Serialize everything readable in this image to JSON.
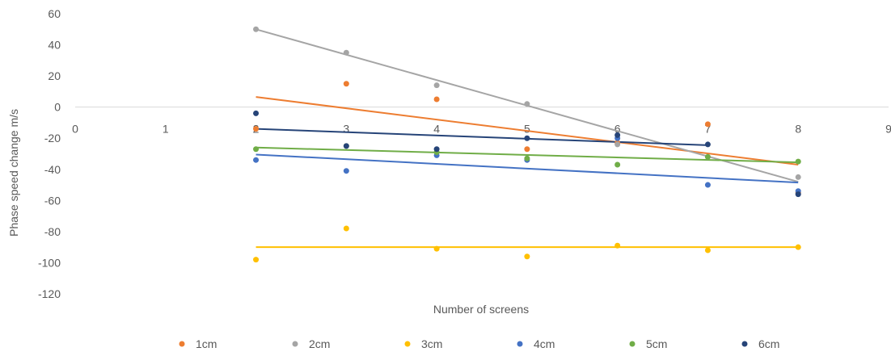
{
  "chart_data": {
    "type": "scatter",
    "title": "",
    "xlabel": "Number of screens",
    "ylabel": "Phase speed change m/s",
    "xlim": [
      0,
      9
    ],
    "ylim": [
      -120,
      60
    ],
    "x_ticks": [
      "0",
      "1",
      "2",
      "3",
      "4",
      "5",
      "6",
      "7",
      "8",
      "9"
    ],
    "y_ticks": [
      "60",
      "40",
      "20",
      "0",
      "-20",
      "-40",
      "-60",
      "-80",
      "-100",
      "-120"
    ],
    "grid": "horizontal zero line only",
    "legend_position": "bottom",
    "trendlines": "linear",
    "series": [
      {
        "name": "1cm",
        "color": "#ED7D31",
        "x": [
          2,
          3,
          4,
          5,
          6,
          7,
          8
        ],
        "y": [
          -14,
          15,
          5,
          -27,
          -23,
          -11,
          -55
        ],
        "trend": {
          "x": [
            2,
            8
          ],
          "y": [
            6.5,
            -37
          ]
        }
      },
      {
        "name": "2cm",
        "color": "#A5A5A5",
        "x": [
          2,
          3,
          4,
          5,
          6,
          7,
          8
        ],
        "y": [
          50,
          35,
          14,
          2,
          -24,
          -32,
          -45
        ],
        "trend": {
          "x": [
            2,
            8
          ],
          "y": [
            50,
            -48
          ]
        }
      },
      {
        "name": "3cm",
        "color": "#FFC000",
        "x": [
          2,
          3,
          4,
          5,
          6,
          7,
          8
        ],
        "y": [
          -98,
          -78,
          -91,
          -96,
          -89,
          -92,
          -90
        ],
        "trend": {
          "x": [
            2,
            8
          ],
          "y": [
            -90,
            -90
          ]
        }
      },
      {
        "name": "4cm",
        "color": "#4472C4",
        "x": [
          2,
          3,
          4,
          5,
          6,
          7,
          8
        ],
        "y": [
          -34,
          -41,
          -31,
          -34,
          -20,
          -50,
          -54
        ],
        "trend": {
          "x": [
            2,
            8
          ],
          "y": [
            -30.5,
            -48.5
          ]
        }
      },
      {
        "name": "5cm",
        "color": "#70AD47",
        "x": [
          2,
          3,
          4,
          5,
          6,
          7,
          8
        ],
        "y": [
          -27,
          -25,
          -29,
          -33,
          -37,
          -32,
          -35
        ],
        "trend": {
          "x": [
            2,
            8
          ],
          "y": [
            -26,
            -35.5
          ]
        }
      },
      {
        "name": "6cm",
        "color": "#264478",
        "x": [
          2,
          3,
          4,
          5,
          6,
          7,
          8
        ],
        "y": [
          -4,
          -25,
          -27,
          -20,
          -18,
          -24,
          -56
        ],
        "trend": {
          "x": [
            2,
            7
          ],
          "y": [
            -14,
            -24.5
          ]
        }
      }
    ]
  }
}
